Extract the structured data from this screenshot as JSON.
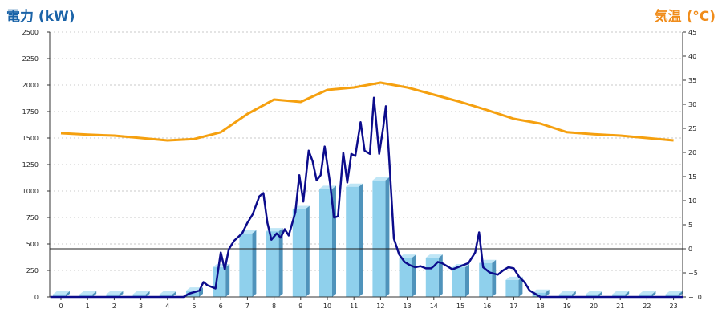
{
  "chart_data": {
    "type": "bar",
    "title": "",
    "left_axis_title": "電力 (kW)",
    "right_axis_title": "気温 (°C)",
    "colors": {
      "left_title": "#1a63a8",
      "right_title": "#f08c1a",
      "bar_front": "#8fd0ec",
      "bar_side": "#4f93bb",
      "bar_top": "#bfe6f6",
      "power_line": "#0c0c8c",
      "temperature_line": "#f5a00f",
      "grid": "#c8c8c8",
      "zero_line": "#222222"
    },
    "x": {
      "categories": [
        "0",
        "1",
        "2",
        "3",
        "4",
        "5",
        "6",
        "7",
        "8",
        "9",
        "10",
        "11",
        "12",
        "13",
        "14",
        "15",
        "16",
        "17",
        "18",
        "19",
        "20",
        "21",
        "22",
        "23"
      ]
    },
    "y_left": {
      "range": [
        0,
        2500
      ],
      "ticks": [
        0,
        250,
        500,
        750,
        1000,
        1250,
        1500,
        1750,
        2000,
        2250,
        2500
      ],
      "tick_labels": [
        "0",
        "250",
        "500",
        "750",
        "1000",
        "1250",
        "1500",
        "1750",
        "2000",
        "2250",
        "2500"
      ]
    },
    "y_right": {
      "range": [
        -10,
        45
      ],
      "ticks": [
        -10,
        -5,
        0,
        5,
        10,
        15,
        20,
        25,
        30,
        35,
        40,
        45
      ],
      "tick_labels": [
        "−10",
        "−5",
        "0",
        "5",
        "10",
        "15",
        "20",
        "25",
        "30",
        "35",
        "40",
        "45"
      ],
      "reference_line": 0
    },
    "bars": {
      "axis": "left",
      "values": [
        25,
        25,
        25,
        25,
        25,
        60,
        280,
        600,
        620,
        830,
        1020,
        1040,
        1100,
        370,
        370,
        280,
        320,
        160,
        40,
        25,
        25,
        25,
        25,
        25
      ]
    },
    "power_line": {
      "axis": "left",
      "points": [
        [
          -0.4,
          0
        ],
        [
          0,
          0
        ],
        [
          1,
          0
        ],
        [
          2,
          0
        ],
        [
          3,
          0
        ],
        [
          4,
          0
        ],
        [
          4.6,
          0
        ],
        [
          4.8,
          30
        ],
        [
          5.2,
          60
        ],
        [
          5.35,
          140
        ],
        [
          5.5,
          110
        ],
        [
          5.8,
          80
        ],
        [
          6.0,
          420
        ],
        [
          6.15,
          260
        ],
        [
          6.3,
          450
        ],
        [
          6.5,
          530
        ],
        [
          6.8,
          600
        ],
        [
          7.0,
          700
        ],
        [
          7.2,
          780
        ],
        [
          7.45,
          950
        ],
        [
          7.6,
          980
        ],
        [
          7.75,
          700
        ],
        [
          7.9,
          540
        ],
        [
          8.1,
          600
        ],
        [
          8.25,
          560
        ],
        [
          8.4,
          640
        ],
        [
          8.55,
          580
        ],
        [
          8.8,
          800
        ],
        [
          8.95,
          1150
        ],
        [
          9.1,
          900
        ],
        [
          9.3,
          1380
        ],
        [
          9.45,
          1280
        ],
        [
          9.6,
          1100
        ],
        [
          9.75,
          1150
        ],
        [
          9.9,
          1420
        ],
        [
          10.1,
          1080
        ],
        [
          10.25,
          750
        ],
        [
          10.4,
          760
        ],
        [
          10.6,
          1360
        ],
        [
          10.75,
          1080
        ],
        [
          10.9,
          1350
        ],
        [
          11.05,
          1330
        ],
        [
          11.25,
          1650
        ],
        [
          11.4,
          1380
        ],
        [
          11.6,
          1350
        ],
        [
          11.75,
          1880
        ],
        [
          11.95,
          1350
        ],
        [
          12.1,
          1600
        ],
        [
          12.2,
          1800
        ],
        [
          12.35,
          1200
        ],
        [
          12.5,
          550
        ],
        [
          12.7,
          400
        ],
        [
          12.9,
          330
        ],
        [
          13.1,
          300
        ],
        [
          13.3,
          280
        ],
        [
          13.5,
          290
        ],
        [
          13.7,
          270
        ],
        [
          13.9,
          270
        ],
        [
          14.0,
          290
        ],
        [
          14.15,
          330
        ],
        [
          14.3,
          320
        ],
        [
          14.5,
          290
        ],
        [
          14.7,
          260
        ],
        [
          15.0,
          290
        ],
        [
          15.3,
          320
        ],
        [
          15.55,
          420
        ],
        [
          15.7,
          610
        ],
        [
          15.85,
          280
        ],
        [
          16.1,
          230
        ],
        [
          16.4,
          210
        ],
        [
          16.6,
          250
        ],
        [
          16.8,
          280
        ],
        [
          17.0,
          270
        ],
        [
          17.2,
          190
        ],
        [
          17.4,
          140
        ],
        [
          17.6,
          60
        ],
        [
          17.8,
          30
        ],
        [
          18.0,
          0
        ],
        [
          19,
          0
        ],
        [
          20,
          0
        ],
        [
          21,
          0
        ],
        [
          22,
          0
        ],
        [
          23,
          0
        ],
        [
          23.4,
          0
        ]
      ]
    },
    "temperature_line": {
      "axis": "right",
      "points": [
        [
          0,
          24
        ],
        [
          1,
          23.7
        ],
        [
          2,
          23.5
        ],
        [
          3,
          23
        ],
        [
          4,
          22.5
        ],
        [
          5,
          22.8
        ],
        [
          6,
          24.2
        ],
        [
          7,
          28
        ],
        [
          8,
          31
        ],
        [
          9,
          30.5
        ],
        [
          10,
          33
        ],
        [
          11,
          33.5
        ],
        [
          12,
          34.5
        ],
        [
          13,
          33.5
        ],
        [
          14,
          32
        ],
        [
          15,
          30.5
        ],
        [
          16,
          28.8
        ],
        [
          17,
          27
        ],
        [
          18,
          26
        ],
        [
          19,
          24.2
        ],
        [
          20,
          23.8
        ],
        [
          21,
          23.5
        ],
        [
          22,
          23
        ],
        [
          23,
          22.5
        ]
      ]
    },
    "grid": true,
    "legend": "none"
  }
}
